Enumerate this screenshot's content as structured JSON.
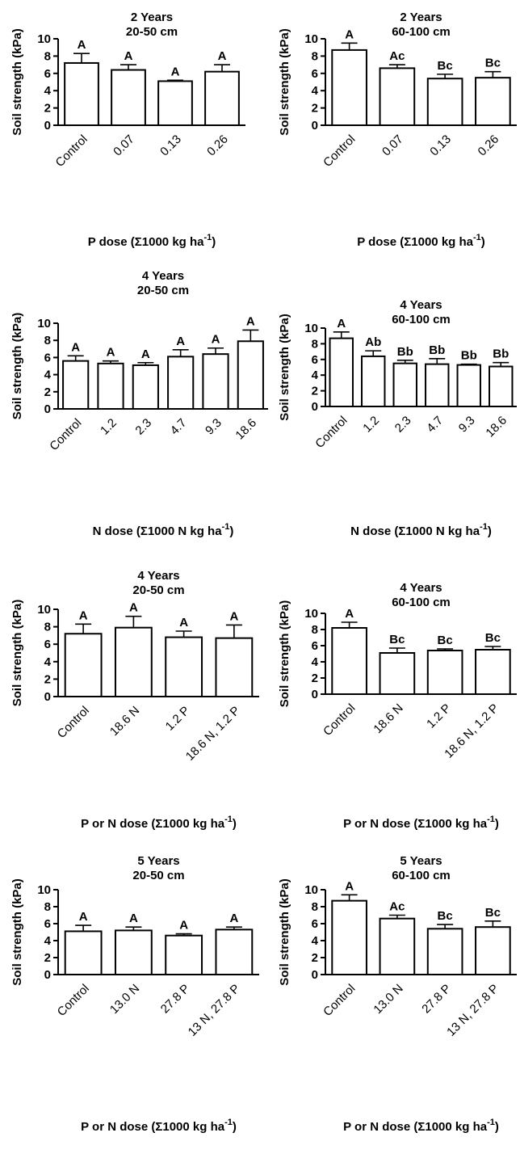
{
  "figure": {
    "colors": {
      "bar_fill": "#ffffff",
      "stroke": "#000000",
      "text": "#000000"
    }
  },
  "chart_data": [
    {
      "type": "bar",
      "title": "2 Years",
      "subtitle": "20-50 cm",
      "ylabel": "Soil strength (kPa)",
      "xlabel_prefix": "P dose (Σ1000 kg ha",
      "xlabel_sup": "-1",
      "xlabel_suffix": ")",
      "ylim": [
        0,
        10
      ],
      "yticks": [
        0,
        2,
        4,
        6,
        8,
        10
      ],
      "grid": false,
      "categories": [
        "Control",
        "0.07",
        "0.13",
        "0.26"
      ],
      "values": [
        7.2,
        6.4,
        5.1,
        6.2
      ],
      "errors": [
        1.1,
        0.6,
        0.1,
        0.8
      ],
      "letters": [
        "A",
        "A",
        "A",
        "A"
      ]
    },
    {
      "type": "bar",
      "title": "2 Years",
      "subtitle": "60-100 cm",
      "ylabel": "Soil strength (kPa)",
      "xlabel_prefix": "P dose (Σ1000 kg ha",
      "xlabel_sup": "-1",
      "xlabel_suffix": ")",
      "ylim": [
        0,
        10
      ],
      "yticks": [
        0,
        2,
        4,
        6,
        8,
        10
      ],
      "grid": false,
      "categories": [
        "Control",
        "0.07",
        "0.13",
        "0.26"
      ],
      "values": [
        8.7,
        6.6,
        5.4,
        5.5
      ],
      "errors": [
        0.8,
        0.4,
        0.5,
        0.7
      ],
      "letters": [
        "A",
        "Ac",
        "Bc",
        "Bc"
      ]
    },
    {
      "type": "bar",
      "title": "4 Years",
      "subtitle": "20-50 cm",
      "ylabel": "Soil strength (kPa)",
      "xlabel_prefix": "N dose (Σ1000 N kg ha",
      "xlabel_sup": "-1",
      "xlabel_suffix": ")",
      "ylim": [
        0,
        10
      ],
      "yticks": [
        0,
        2,
        4,
        6,
        8,
        10
      ],
      "grid": false,
      "categories": [
        "Control",
        "1.2",
        "2.3",
        "4.7",
        "9.3",
        "18.6"
      ],
      "values": [
        5.6,
        5.3,
        5.1,
        6.1,
        6.4,
        7.9
      ],
      "errors": [
        0.6,
        0.3,
        0.3,
        0.8,
        0.7,
        1.3
      ],
      "letters": [
        "A",
        "A",
        "A",
        "A",
        "A",
        "A"
      ]
    },
    {
      "type": "bar",
      "title": "4 Years",
      "subtitle": "60-100 cm",
      "ylabel": "Soil strength (kPa)",
      "xlabel_prefix": "N dose (Σ1000 N kg ha",
      "xlabel_sup": "-1",
      "xlabel_suffix": ")",
      "ylim": [
        0,
        10
      ],
      "yticks": [
        0,
        2,
        4,
        6,
        8,
        10
      ],
      "grid": false,
      "categories": [
        "Control",
        "1.2",
        "2.3",
        "4.7",
        "9.3",
        "18.6"
      ],
      "values": [
        8.7,
        6.4,
        5.5,
        5.4,
        5.3,
        5.1
      ],
      "errors": [
        0.8,
        0.7,
        0.4,
        0.7,
        0.1,
        0.5
      ],
      "letters": [
        "A",
        "Ab",
        "Bb",
        "Bb",
        "Bb",
        "Bb"
      ]
    },
    {
      "type": "bar",
      "title": "4 Years",
      "subtitle": "20-50 cm",
      "ylabel": "Soil strength (kPa)",
      "xlabel_prefix": "P or N dose (Σ1000 kg ha",
      "xlabel_sup": "-1",
      "xlabel_suffix": ")",
      "ylim": [
        0,
        10
      ],
      "yticks": [
        0,
        2,
        4,
        6,
        8,
        10
      ],
      "grid": false,
      "categories": [
        "Control",
        "18.6 N",
        "1.2 P",
        "18.6 N, 1.2 P"
      ],
      "values": [
        7.2,
        7.9,
        6.8,
        6.7
      ],
      "errors": [
        1.1,
        1.3,
        0.7,
        1.5
      ],
      "letters": [
        "A",
        "A",
        "A",
        "A"
      ]
    },
    {
      "type": "bar",
      "title": "4 Years",
      "subtitle": "60-100 cm",
      "ylabel": "Soil strength (kPa)",
      "xlabel_prefix": "P or N dose (Σ1000 kg ha",
      "xlabel_sup": "-1",
      "xlabel_suffix": ")",
      "ylim": [
        0,
        10
      ],
      "yticks": [
        0,
        2,
        4,
        6,
        8,
        10
      ],
      "grid": false,
      "categories": [
        "Control",
        "18.6 N",
        "1.2 P",
        "18.6 N, 1.2 P"
      ],
      "values": [
        8.2,
        5.1,
        5.4,
        5.5
      ],
      "errors": [
        0.7,
        0.6,
        0.2,
        0.4
      ],
      "letters": [
        "A",
        "Bc",
        "Bc",
        "Bc"
      ]
    },
    {
      "type": "bar",
      "title": "5 Years",
      "subtitle": "20-50 cm",
      "ylabel": "Soil strength (kPa)",
      "xlabel_prefix": "P or N dose (Σ1000 kg ha",
      "xlabel_sup": "-1",
      "xlabel_suffix": ")",
      "ylim": [
        0,
        10
      ],
      "yticks": [
        0,
        2,
        4,
        6,
        8,
        10
      ],
      "grid": false,
      "categories": [
        "Control",
        "13.0 N",
        "27.8 P",
        "13 N, 27.8 P"
      ],
      "values": [
        5.1,
        5.2,
        4.6,
        5.3
      ],
      "errors": [
        0.7,
        0.4,
        0.2,
        0.3
      ],
      "letters": [
        "A",
        "A",
        "A",
        "A"
      ]
    },
    {
      "type": "bar",
      "title": "5 Years",
      "subtitle": "60-100 cm",
      "ylabel": "Soil strength (kPa)",
      "xlabel_prefix": "P or N dose (Σ1000 kg ha",
      "xlabel_sup": "-1",
      "xlabel_suffix": ")",
      "ylim": [
        0,
        10
      ],
      "yticks": [
        0,
        2,
        4,
        6,
        8,
        10
      ],
      "grid": false,
      "categories": [
        "Control",
        "13.0 N",
        "27.8 P",
        "13 N, 27.8 P"
      ],
      "values": [
        8.7,
        6.6,
        5.4,
        5.6
      ],
      "errors": [
        0.7,
        0.4,
        0.5,
        0.7
      ],
      "letters": [
        "A",
        "Ac",
        "Bc",
        "Bc"
      ]
    }
  ]
}
